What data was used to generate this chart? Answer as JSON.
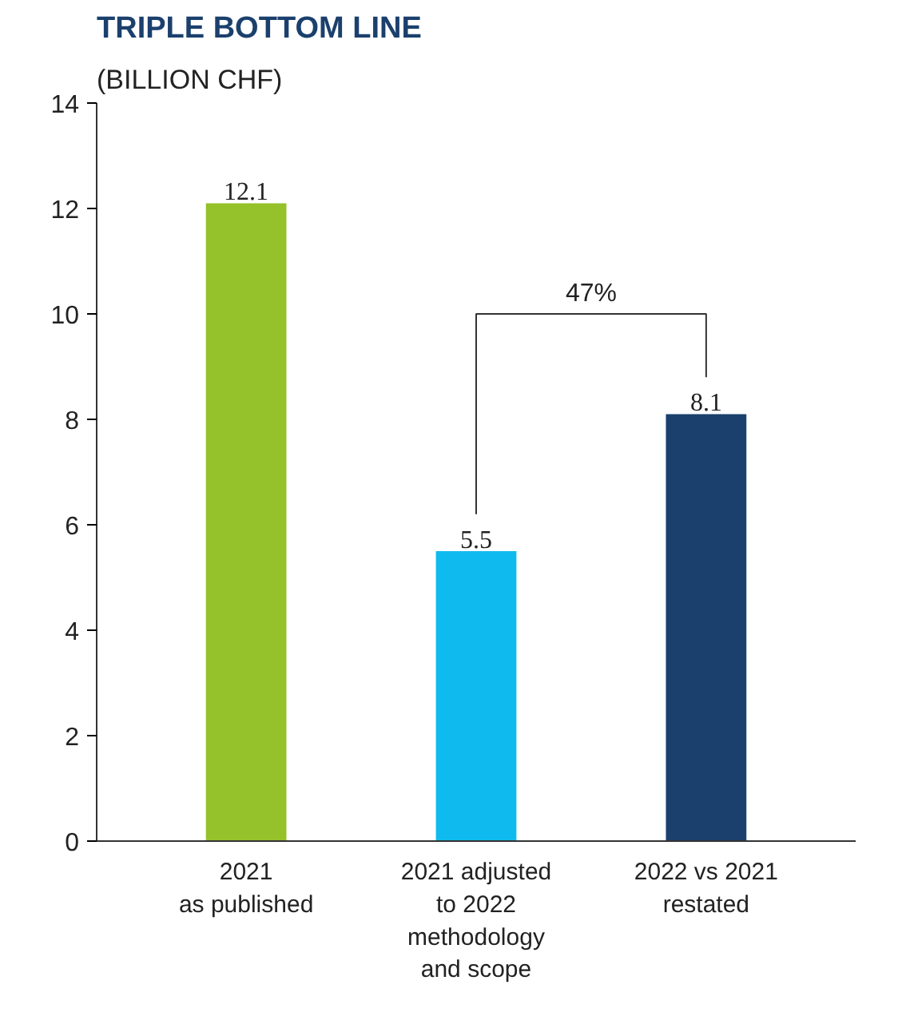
{
  "chart_data": {
    "type": "bar",
    "title": "TRIPLE BOTTOM LINE",
    "subtitle": "(BILLION CHF)",
    "categories": [
      "2021\nas published",
      "2021 adjusted\nto 2022\nmethodology\nand scope",
      "2022 vs 2021\nrestated"
    ],
    "values": [
      12.1,
      5.5,
      8.1
    ],
    "colors": [
      "#95c12b",
      "#0fbbee",
      "#1b406d"
    ],
    "ylim": [
      0,
      14
    ],
    "yticks": [
      0,
      2,
      4,
      6,
      8,
      10,
      12,
      14
    ],
    "data_labels": true,
    "grid": false,
    "annotations": [
      "47%"
    ]
  }
}
